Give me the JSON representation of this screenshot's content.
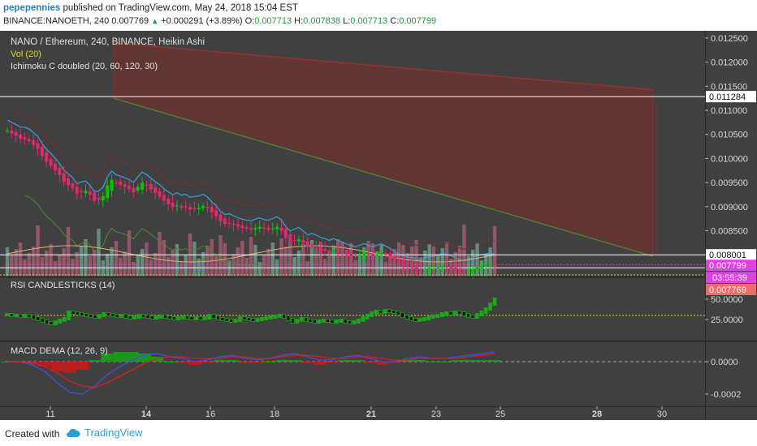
{
  "header": {
    "user": "pepepennies",
    "published_text": "published on TradingView.com, May 24, 2018 15:04 EST",
    "symbol": "BINANCE:NANOETH, 240",
    "last": "0.007769",
    "change": "+0.000291 (+3.89%)",
    "o_label": "O:",
    "o_value": "0.007713",
    "h_label": "H:",
    "h_value": "0.007838",
    "l_label": "L:",
    "l_value": "0.007713",
    "c_label": "C:",
    "c_value": "0.007799"
  },
  "legend": {
    "main_title": "NANO / Ethereum, 240, BINANCE, Heikin Ashi",
    "vol": "Vol (20)",
    "ichimoku": "Ichimoku C doubled (20, 60, 120, 30)",
    "rsi_title": "RSI CANDLESTICKS (14)",
    "macd_title": "MACD DEMA (12, 26, 9)"
  },
  "footer": {
    "created_with": "Created with",
    "brand": "TradingView"
  },
  "colors": {
    "background": "#404040",
    "bull": "#00c800",
    "bear": "#e0286e",
    "cloud_bear": "#8c2828",
    "cloud_bull": "#2e5a2e",
    "conversion_line": "#3a9fe0",
    "base_line": "#7a3030",
    "lagging_line": "#4a8a2a",
    "volume_up": "#6a9a88",
    "volume_down": "#a05a6e",
    "rsi_ref": "#d8d820",
    "macd_line": "#4050e0",
    "signal_line": "#d82020"
  },
  "chart_data": [
    {
      "type": "candlestick",
      "title": "NANO / Ethereum, 240, BINANCE, Heikin Ashi",
      "y_ticks": [
        "0.012500",
        "0.012000",
        "0.011500",
        "0.011000",
        "0.010500",
        "0.010000",
        "0.009500",
        "0.009000",
        "0.008500",
        "0.008000"
      ],
      "ylim": [
        0.00755,
        0.01265
      ],
      "x_ticks": [
        "11",
        "14",
        "16",
        "18",
        "21",
        "23",
        "25",
        "28",
        "30"
      ],
      "price_labels": [
        {
          "value": 0.011284,
          "text": "0.011284",
          "style": "horizontal-line"
        },
        {
          "value": 0.008001,
          "text": "0.008001",
          "style": "horizontal-line"
        },
        {
          "value": 0.007799,
          "text": "0.007799",
          "style": "current-price"
        },
        {
          "value": 0.007769,
          "text": "0.007769",
          "style": "previous-close"
        }
      ],
      "countdown": "03:55:39",
      "close_series": [
        0.01058,
        0.01052,
        0.01047,
        0.01041,
        0.0104,
        0.01036,
        0.01028,
        0.0102,
        0.01005,
        0.00993,
        0.00985,
        0.00975,
        0.00965,
        0.00952,
        0.00945,
        0.00938,
        0.00926,
        0.0093,
        0.00933,
        0.00925,
        0.00912,
        0.00914,
        0.00922,
        0.00944,
        0.00956,
        0.00948,
        0.00945,
        0.00941,
        0.00937,
        0.0093,
        0.00941,
        0.0095,
        0.00944,
        0.00936,
        0.00928,
        0.00921,
        0.00912,
        0.00905,
        0.00899,
        0.00903,
        0.00898,
        0.009,
        0.00894,
        0.00896,
        0.00898,
        0.00902,
        0.00897,
        0.00888,
        0.0088,
        0.0087,
        0.00864,
        0.00866,
        0.00862,
        0.00859,
        0.00856,
        0.00854,
        0.00852,
        0.00856,
        0.00858,
        0.00854,
        0.00852,
        0.00855,
        0.00858,
        0.0085,
        0.00835,
        0.00826,
        0.00829,
        0.00832,
        0.00824,
        0.00816,
        0.00818,
        0.00815,
        0.0081,
        0.00808,
        0.00805,
        0.00809,
        0.00806,
        0.00803,
        0.008,
        0.00798,
        0.00796,
        0.008,
        0.00804,
        0.00801,
        0.00798,
        0.00802,
        0.00805,
        0.008,
        0.00795,
        0.00788,
        0.00783,
        0.00778,
        0.00775,
        0.00773,
        0.0077,
        0.00768,
        0.0077,
        0.00773,
        0.00772,
        0.00775,
        0.00777,
        0.00775,
        0.00772,
        0.00768,
        0.00764,
        0.00762,
        0.00765,
        0.0077,
        0.00775,
        0.00778,
        0.0078,
        0.00782,
        0.0078
      ]
    },
    {
      "type": "line",
      "title": "RSI CANDLESTICKS (14)",
      "y_ticks": [
        "50.0000",
        "25.0000"
      ],
      "ylim": [
        0,
        75
      ],
      "reference_level": 30,
      "values": [
        31,
        30,
        30,
        29,
        30,
        29,
        27,
        25,
        23,
        21,
        20,
        22,
        24,
        26,
        34,
        33,
        32,
        31,
        30,
        29,
        28,
        30,
        32,
        31,
        30,
        29,
        30,
        28,
        27,
        28,
        30,
        29,
        28,
        27,
        28,
        29,
        28,
        27,
        26,
        27,
        28,
        27,
        26,
        27,
        26,
        27,
        30,
        28,
        26,
        25,
        24,
        23,
        24,
        27,
        26,
        25,
        24,
        25,
        26,
        27,
        28,
        29,
        30,
        28,
        25,
        22,
        24,
        26,
        24,
        23,
        22,
        23,
        24,
        23,
        22,
        23,
        24,
        22,
        21,
        22,
        24,
        27,
        30,
        33,
        35,
        34,
        36,
        35,
        34,
        32,
        29,
        27,
        25,
        24,
        25,
        26,
        28,
        29,
        30,
        32,
        33,
        32,
        34,
        33,
        31,
        29,
        28,
        31,
        34,
        38,
        44,
        50
      ]
    },
    {
      "type": "line",
      "title": "MACD DEMA (12, 26, 9)",
      "y_ticks": [
        "0.0000",
        "-0.0002"
      ],
      "ylim": [
        -0.00027,
        0.00012
      ],
      "series": [
        {
          "name": "MACD",
          "values": [
            0.0,
            0.0,
            -2e-05,
            -6e-05,
            -0.00013,
            -0.00019,
            -0.0002,
            -0.00015,
            -8e-05,
            -3e-05,
            1e-05,
            4e-05,
            5e-05,
            3e-05,
            2e-05,
            0.0,
            1e-05,
            3e-05,
            4e-05,
            2e-05,
            1e-05,
            2e-05,
            4e-05,
            5e-05,
            3e-05,
            1e-05,
            1e-05,
            3e-05,
            4e-05,
            2e-05,
            0.0,
            0.0,
            2e-05,
            3e-05,
            2e-05,
            2e-05,
            3e-05,
            4e-05,
            5e-05,
            6e-05
          ]
        },
        {
          "name": "Signal",
          "values": [
            0.0,
            0.0,
            -1e-05,
            -3e-05,
            -7e-05,
            -0.00012,
            -0.00015,
            -0.00016,
            -0.00013,
            -9e-05,
            -5e-05,
            -1e-05,
            2e-05,
            3e-05,
            3e-05,
            2e-05,
            2e-05,
            2e-05,
            3e-05,
            3e-05,
            2e-05,
            2e-05,
            3e-05,
            4e-05,
            4e-05,
            3e-05,
            2e-05,
            2e-05,
            3e-05,
            3e-05,
            2e-05,
            1e-05,
            1e-05,
            2e-05,
            2e-05,
            2e-05,
            2e-05,
            3e-05,
            4e-05,
            5e-05
          ]
        }
      ]
    }
  ]
}
